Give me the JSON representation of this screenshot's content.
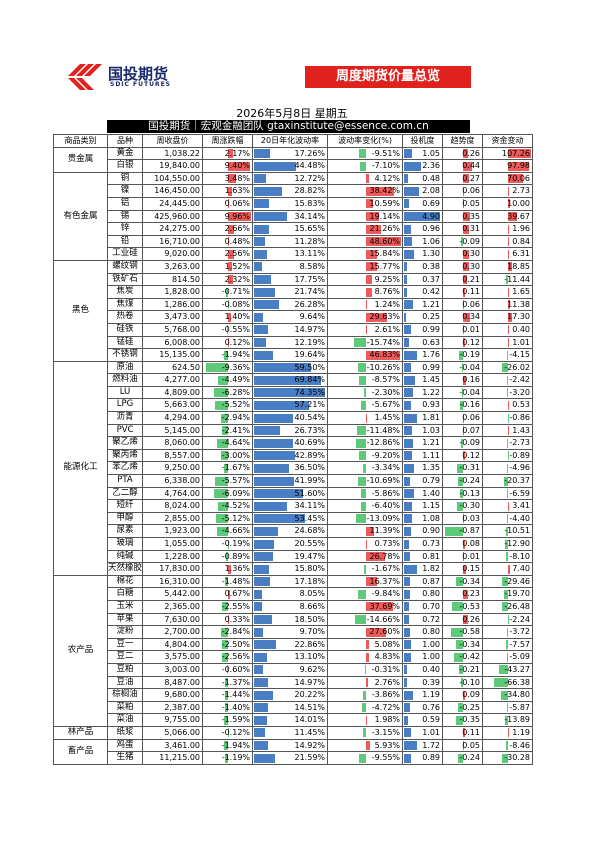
{
  "header": {
    "logo_text": "国投期货",
    "logo_sub": "SDIC FUTURES",
    "banner": "周度期货价量总览",
    "date": "2026年5月8日 星期五",
    "team": "国投期货｜宏观金融团队 gtaxinstitute@essence.com.cn"
  },
  "table": {
    "columns": [
      "商品类别",
      "品种",
      "周收盘价",
      "周涨跌幅",
      "20日年化波动率",
      "波动率变化(%)",
      "投机度",
      "趋势度",
      "资金变动"
    ],
    "groups": [
      {
        "category": "贵金属",
        "rows": [
          [
            "黄金",
            "1,038.22",
            "2.17%",
            "17.26%",
            "-9.51%",
            "1.05",
            "0.26",
            "107.26"
          ],
          [
            "白银",
            "19,840.00",
            "9.40%",
            "44.48%",
            "-7.10%",
            "2.36",
            "0.44",
            "97.98"
          ]
        ]
      },
      {
        "category": "有色金属",
        "rows": [
          [
            "铜",
            "104,550.00",
            "3.48%",
            "12.72%",
            "4.12%",
            "0.48",
            "0.27",
            "70.06"
          ],
          [
            "镍",
            "146,450.00",
            "1.63%",
            "28.82%",
            "38.42%",
            "2.08",
            "0.06",
            "2.73"
          ],
          [
            "铝",
            "24,445.00",
            "0.06%",
            "15.83%",
            "10.59%",
            "0.69",
            "0.05",
            "10.00"
          ],
          [
            "锡",
            "425,960.00",
            "9.96%",
            "34.14%",
            "19.14%",
            "4.90",
            "0.35",
            "39.67"
          ],
          [
            "锌",
            "24,275.00",
            "2.66%",
            "15.65%",
            "21.26%",
            "0.96",
            "0.31",
            "1.96"
          ],
          [
            "铅",
            "16,710.00",
            "0.48%",
            "11.28%",
            "48.60%",
            "1.06",
            "-0.09",
            "0.84"
          ],
          [
            "工业硅",
            "9,020.00",
            "2.56%",
            "13.11%",
            "15.84%",
            "1.30",
            "0.30",
            "6.31"
          ]
        ]
      },
      {
        "category": "黑色",
        "rows": [
          [
            "螺纹钢",
            "3,263.00",
            "1.52%",
            "8.58%",
            "15.77%",
            "0.38",
            "0.30",
            "18.85"
          ],
          [
            "铁矿石",
            "814.50",
            "2.32%",
            "17.75%",
            "9.25%",
            "0.37",
            "0.21",
            "-11.44"
          ],
          [
            "焦炭",
            "1,828.00",
            "-0.71%",
            "21.74%",
            "8.76%",
            "0.42",
            "0.11",
            "1.65"
          ],
          [
            "焦煤",
            "1,286.00",
            "-0.08%",
            "26.28%",
            "1.24%",
            "1.21",
            "0.06",
            "11.38"
          ],
          [
            "热卷",
            "3,473.00",
            "1.40%",
            "9.64%",
            "29.63%",
            "0.25",
            "0.34",
            "17.30"
          ],
          [
            "硅铁",
            "5,768.00",
            "-0.55%",
            "14.97%",
            "2.61%",
            "0.99",
            "0.01",
            "0.40"
          ],
          [
            "锰硅",
            "6,008.00",
            "0.12%",
            "12.19%",
            "-15.74%",
            "0.63",
            "0.12",
            "1.01"
          ],
          [
            "不锈钢",
            "15,135.00",
            "-1.94%",
            "19.64%",
            "46.83%",
            "1.76",
            "-0.19",
            "-4.15"
          ]
        ]
      },
      {
        "category": "能源化工",
        "rows": [
          [
            "原油",
            "624.50",
            "-9.36%",
            "59.50%",
            "-10.26%",
            "0.99",
            "-0.04",
            "-26.02"
          ],
          [
            "燃料油",
            "4,277.00",
            "-4.49%",
            "69.84%",
            "-8.57%",
            "1.45",
            "0.16",
            "-2.42"
          ],
          [
            "LU",
            "4,809.00",
            "-6.28%",
            "74.35%",
            "-2.30%",
            "1.22",
            "-0.04",
            "-3.20"
          ],
          [
            "LPG",
            "5,663.00",
            "-5.52%",
            "57.21%",
            "-5.67%",
            "0.93",
            "-0.16",
            "0.53"
          ],
          [
            "沥青",
            "4,294.00",
            "-2.94%",
            "40.54%",
            "1.45%",
            "1.81",
            "0.06",
            "-0.86"
          ],
          [
            "PVC",
            "5,145.00",
            "-2.41%",
            "26.73%",
            "-11.48%",
            "1.03",
            "0.07",
            "1.43"
          ],
          [
            "聚乙烯",
            "8,060.00",
            "-4.64%",
            "40.69%",
            "-12.86%",
            "1.21",
            "-0.09",
            "-2.73"
          ],
          [
            "聚丙烯",
            "8,557.00",
            "-3.00%",
            "42.89%",
            "-9.20%",
            "1.11",
            "0.12",
            "-0.89"
          ],
          [
            "苯乙烯",
            "9,250.00",
            "-1.67%",
            "36.50%",
            "-3.34%",
            "1.35",
            "-0.31",
            "-4.96"
          ],
          [
            "PTA",
            "6,338.00",
            "-5.57%",
            "41.99%",
            "-10.69%",
            "0.79",
            "-0.24",
            "-20.37"
          ],
          [
            "乙二醇",
            "4,764.00",
            "-6.09%",
            "51.60%",
            "-5.86%",
            "1.40",
            "-0.13",
            "-6.59"
          ],
          [
            "短纤",
            "8,024.00",
            "-4.52%",
            "34.11%",
            "-6.40%",
            "1.15",
            "-0.30",
            "3.41"
          ],
          [
            "甲醇",
            "2,855.00",
            "-5.12%",
            "53.45%",
            "-13.09%",
            "1.08",
            "0.03",
            "-4.40"
          ],
          [
            "尿素",
            "1,923.00",
            "-4.66%",
            "24.68%",
            "11.39%",
            "0.90",
            "-0.87",
            "-10.51"
          ],
          [
            "玻璃",
            "1,055.00",
            "-0.19%",
            "20.55%",
            "0.73%",
            "0.73",
            "0.08",
            "-12.90"
          ],
          [
            "纯碱",
            "1,228.00",
            "-0.89%",
            "19.47%",
            "26.78%",
            "0.81",
            "0.01",
            "-8.10"
          ],
          [
            "天然橡胶",
            "17,830.00",
            "1.36%",
            "15.80%",
            "-1.67%",
            "1.82",
            "0.15",
            "7.40"
          ]
        ]
      },
      {
        "category": "农产品",
        "rows": [
          [
            "棉花",
            "16,310.00",
            "-1.48%",
            "17.18%",
            "16.37%",
            "0.87",
            "-0.34",
            "-29.46"
          ],
          [
            "白糖",
            "5,442.00",
            "0.67%",
            "8.05%",
            "-9.84%",
            "0.80",
            "0.23",
            "-19.70"
          ],
          [
            "玉米",
            "2,365.00",
            "-2.55%",
            "8.66%",
            "37.69%",
            "0.70",
            "-0.53",
            "-26.48"
          ],
          [
            "苹果",
            "7,630.00",
            "0.33%",
            "18.50%",
            "-14.66%",
            "0.72",
            "0.26",
            "-2.24"
          ],
          [
            "淀粉",
            "2,700.00",
            "-2.84%",
            "9.70%",
            "27.60%",
            "0.80",
            "-0.58",
            "-3.72"
          ],
          [
            "豆一",
            "4,804.00",
            "-2.50%",
            "22.86%",
            "5.08%",
            "1.00",
            "-0.34",
            "-7.57"
          ],
          [
            "豆二",
            "3,575.00",
            "-2.56%",
            "13.10%",
            "4.83%",
            "1.00",
            "-0.42",
            "-5.09"
          ],
          [
            "豆粕",
            "3,003.00",
            "-0.60%",
            "9.62%",
            "-0.31%",
            "0.40",
            "-0.21",
            "-43.27"
          ],
          [
            "豆油",
            "8,487.00",
            "-1.37%",
            "14.97%",
            "2.76%",
            "0.39",
            "-0.10",
            "-66.38"
          ],
          [
            "棕榈油",
            "9,680.00",
            "-1.44%",
            "20.22%",
            "-3.86%",
            "1.19",
            "0.09",
            "-34.80"
          ],
          [
            "菜粕",
            "2,387.00",
            "-1.40%",
            "14.51%",
            "-4.72%",
            "0.76",
            "-0.25",
            "-5.87"
          ],
          [
            "菜油",
            "9,755.00",
            "-1.59%",
            "14.01%",
            "1.98%",
            "0.59",
            "-0.35",
            "-13.89"
          ]
        ]
      },
      {
        "category": "林产品",
        "rows": [
          [
            "纸浆",
            "5,066.00",
            "-0.12%",
            "11.45%",
            "-3.15%",
            "1.01",
            "0.11",
            "1.19"
          ]
        ]
      },
      {
        "category": "畜产品",
        "rows": [
          [
            "鸡蛋",
            "3,461.00",
            "-1.94%",
            "14.92%",
            "5.93%",
            "1.72",
            "0.05",
            "-8.46"
          ],
          [
            "生猪",
            "11,215.00",
            "-1.19%",
            "21.59%",
            "-9.55%",
            "0.89",
            "-0.24",
            "-30.28"
          ]
        ]
      }
    ]
  }
}
